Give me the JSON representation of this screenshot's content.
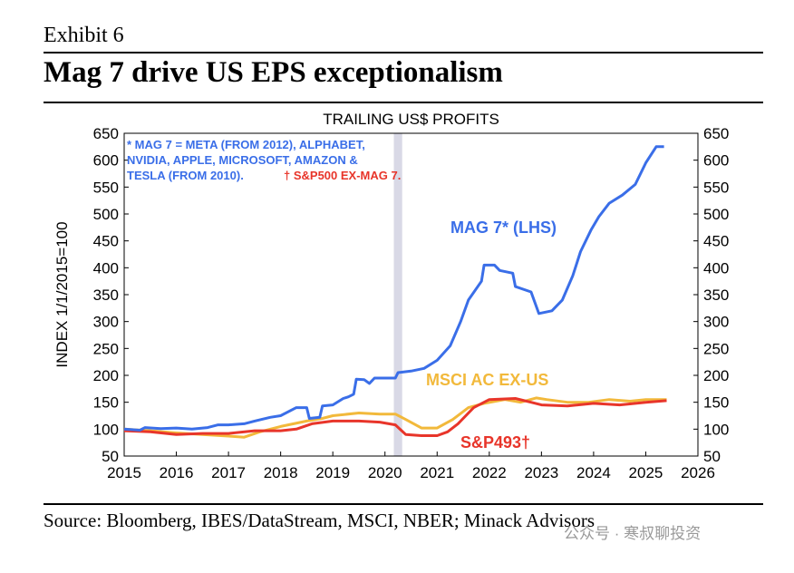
{
  "exhibit": "Exhibit 6",
  "title": "Mag 7 drive US EPS exceptionalism",
  "source": "Source: Bloomberg, IBES/DataStream, MSCI, NBER; Minack Advisors",
  "watermark": "公众号 · 寒叔聊投资",
  "chart_data": {
    "type": "line",
    "title": "TRAILING US$ PROFITS",
    "y_label": "INDEX 1/1/2015=100",
    "note_lines": [
      "* MAG 7 = META (FROM 2012), ALPHABET,",
      "NVIDIA, APPLE, MICROSOFT, AMAZON &",
      "TESLA (FROM 2010)."
    ],
    "note_red": "† S&P500 EX-MAG 7.",
    "xlim": [
      2015,
      2026
    ],
    "xticks": [
      2015,
      2016,
      2017,
      2018,
      2019,
      2020,
      2021,
      2022,
      2023,
      2024,
      2025,
      2026
    ],
    "ylim": [
      50,
      650
    ],
    "yticks": [
      50,
      100,
      150,
      200,
      250,
      300,
      350,
      400,
      450,
      500,
      550,
      600,
      650
    ],
    "y2lim": [
      50,
      650
    ],
    "y2ticks": [
      50,
      100,
      150,
      200,
      250,
      300,
      350,
      400,
      450,
      500,
      550,
      600,
      650
    ],
    "recession_band": [
      2020.17,
      2020.33
    ],
    "series": [
      {
        "name": "MAG 7* (LHS)",
        "color": "#3a6ee8",
        "x": [
          2015.0,
          2015.3,
          2015.4,
          2015.7,
          2016.0,
          2016.3,
          2016.6,
          2016.8,
          2017.0,
          2017.3,
          2017.5,
          2017.8,
          2018.0,
          2018.3,
          2018.5,
          2018.55,
          2018.75,
          2018.8,
          2019.0,
          2019.2,
          2019.3,
          2019.4,
          2019.45,
          2019.6,
          2019.7,
          2019.8,
          2020.2,
          2020.25,
          2020.5,
          2020.75,
          2021.0,
          2021.25,
          2021.45,
          2021.6,
          2021.85,
          2021.9,
          2022.1,
          2022.2,
          2022.45,
          2022.5,
          2022.8,
          2022.95,
          2023.2,
          2023.4,
          2023.6,
          2023.75,
          2023.95,
          2024.1,
          2024.3,
          2024.55,
          2024.8,
          2025.0,
          2025.2,
          2025.35
        ],
        "values": [
          100,
          98,
          103,
          101,
          102,
          100,
          103,
          108,
          108,
          110,
          115,
          122,
          125,
          140,
          140,
          120,
          122,
          143,
          145,
          157,
          160,
          165,
          193,
          192,
          185,
          195,
          195,
          205,
          208,
          213,
          228,
          255,
          300,
          340,
          375,
          405,
          405,
          395,
          390,
          365,
          355,
          315,
          320,
          340,
          385,
          430,
          470,
          495,
          520,
          535,
          555,
          595,
          625,
          625
        ]
      },
      {
        "name": "MSCI AC EX-US",
        "color": "#f2b93b",
        "x": [
          2015.0,
          2015.5,
          2016.0,
          2016.5,
          2017.0,
          2017.3,
          2017.6,
          2018.0,
          2018.5,
          2018.8,
          2019.0,
          2019.5,
          2019.9,
          2020.2,
          2020.4,
          2020.7,
          2021.0,
          2021.3,
          2021.6,
          2021.9,
          2022.3,
          2022.6,
          2022.9,
          2023.1,
          2023.5,
          2023.9,
          2024.3,
          2024.7,
          2025.0,
          2025.4
        ],
        "values": [
          100,
          97,
          93,
          90,
          87,
          85,
          95,
          105,
          115,
          120,
          125,
          130,
          128,
          128,
          118,
          102,
          102,
          118,
          140,
          148,
          155,
          150,
          158,
          155,
          150,
          150,
          155,
          152,
          155,
          155
        ]
      },
      {
        "name": "S&P493†",
        "color": "#e8352a",
        "x": [
          2015.0,
          2015.5,
          2016.0,
          2016.5,
          2017.0,
          2017.5,
          2018.0,
          2018.3,
          2018.6,
          2019.0,
          2019.5,
          2019.9,
          2020.2,
          2020.4,
          2020.7,
          2021.0,
          2021.2,
          2021.4,
          2021.7,
          2022.0,
          2022.5,
          2022.8,
          2023.0,
          2023.5,
          2024.0,
          2024.5,
          2025.0,
          2025.4
        ],
        "values": [
          97,
          95,
          90,
          92,
          92,
          97,
          97,
          100,
          110,
          115,
          115,
          113,
          108,
          90,
          88,
          88,
          95,
          110,
          140,
          155,
          157,
          150,
          145,
          143,
          148,
          145,
          150,
          153
        ]
      }
    ]
  }
}
